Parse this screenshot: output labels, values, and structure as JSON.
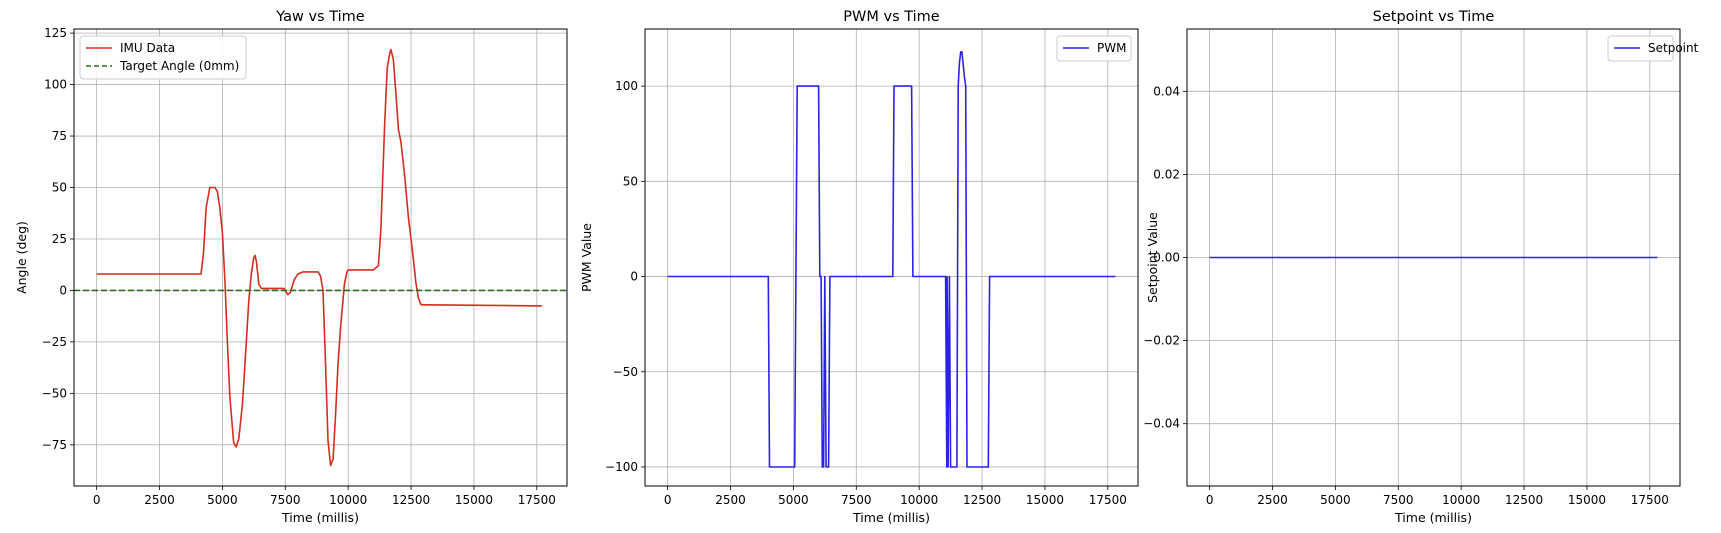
{
  "chart_data": [
    {
      "type": "line",
      "title": "Yaw vs Time",
      "xlabel": "Time (millis)",
      "ylabel": "Angle (deg)",
      "xlim": [
        -900,
        18700
      ],
      "ylim": [
        -95,
        127
      ],
      "xticks": [
        0,
        2500,
        5000,
        7500,
        10000,
        12500,
        15000,
        17500
      ],
      "yticks": [
        125,
        100,
        75,
        50,
        25,
        0,
        -25,
        -50,
        -75
      ],
      "grid": true,
      "legend": "top-left",
      "series": [
        {
          "name": "IMU Data",
          "color": "#d62c1f",
          "style": "solid",
          "x": [
            0,
            4050,
            4150,
            4250,
            4350,
            4500,
            4600,
            4700,
            4800,
            4900,
            5000,
            5100,
            5200,
            5300,
            5450,
            5550,
            5650,
            5800,
            5950,
            6050,
            6150,
            6250,
            6300,
            6350,
            6450,
            6550,
            7000,
            7450,
            7600,
            7700,
            7850,
            8000,
            8200,
            8800,
            8900,
            9000,
            9100,
            9200,
            9300,
            9400,
            9500,
            9600,
            9700,
            9850,
            9950,
            10000,
            10500,
            11000,
            11200,
            11300,
            11450,
            11550,
            11650,
            11700,
            11800,
            11900,
            12000,
            12100,
            12250,
            12400,
            12550,
            12700,
            12800,
            12900,
            13000,
            17700
          ],
          "values": [
            8,
            8,
            8,
            18,
            40,
            50,
            50,
            50,
            48,
            40,
            28,
            5,
            -25,
            -52,
            -74,
            -76,
            -72,
            -55,
            -25,
            -5,
            8,
            16,
            17,
            14,
            3,
            1,
            1,
            1,
            -2,
            -1,
            5,
            8,
            9,
            9,
            7,
            0,
            -35,
            -73,
            -85,
            -82,
            -60,
            -35,
            -18,
            3,
            9,
            10,
            10,
            10,
            12,
            30,
            80,
            108,
            115,
            117,
            112,
            95,
            78,
            72,
            55,
            35,
            20,
            3,
            -4,
            -7,
            -7,
            -7.5
          ]
        },
        {
          "name": "Target Angle (0mm)",
          "color": "#2e6b1f",
          "style": "dashed",
          "x": [
            -900,
            18700
          ],
          "values": [
            0,
            0
          ]
        }
      ]
    },
    {
      "type": "line",
      "title": "PWM vs Time",
      "xlabel": "Time (millis)",
      "ylabel": "PWM Value",
      "xlim": [
        -900,
        18700
      ],
      "ylim": [
        -110,
        130
      ],
      "xticks": [
        0,
        2500,
        5000,
        7500,
        10000,
        12500,
        15000,
        17500
      ],
      "yticks": [
        100,
        50,
        0,
        -50,
        -100
      ],
      "grid": true,
      "legend": "top-right",
      "series": [
        {
          "name": "PWM",
          "color": "#2a22e6",
          "style": "solid",
          "x": [
            0,
            4000,
            4050,
            5050,
            5100,
            5150,
            6000,
            6050,
            6100,
            6150,
            6200,
            6250,
            6300,
            6400,
            6450,
            6500,
            8950,
            9000,
            9700,
            9750,
            11050,
            11100,
            11110,
            11150,
            11200,
            11250,
            11300,
            11500,
            11550,
            11600,
            11650,
            11700,
            11800,
            11850,
            11900,
            12750,
            12800,
            17800
          ],
          "values": [
            0,
            0,
            -100,
            -100,
            0,
            100,
            100,
            0,
            0,
            -100,
            -100,
            0,
            -100,
            -100,
            0,
            0,
            0,
            100,
            100,
            0,
            0,
            -100,
            0,
            -100,
            0,
            -100,
            -100,
            -100,
            100,
            112,
            118,
            118,
            105,
            100,
            -100,
            -100,
            0,
            0
          ]
        }
      ]
    },
    {
      "type": "line",
      "title": "Setpoint vs Time",
      "xlabel": "Time (millis)",
      "ylabel": "Setpoint Value",
      "xlim": [
        -900,
        18700
      ],
      "ylim": [
        -0.055,
        0.055
      ],
      "xticks": [
        0,
        2500,
        5000,
        7500,
        10000,
        12500,
        15000,
        17500
      ],
      "yticks": [
        0.04,
        0.02,
        0.0,
        -0.02,
        -0.04
      ],
      "yticklabels": [
        "0.04",
        "0.02",
        "0.00",
        "−0.02",
        "−0.04"
      ],
      "grid": true,
      "legend": "top-right",
      "series": [
        {
          "name": "Setpoint",
          "color": "#2a22e6",
          "style": "solid",
          "x": [
            0,
            17800
          ],
          "values": [
            0,
            0
          ]
        }
      ]
    }
  ]
}
